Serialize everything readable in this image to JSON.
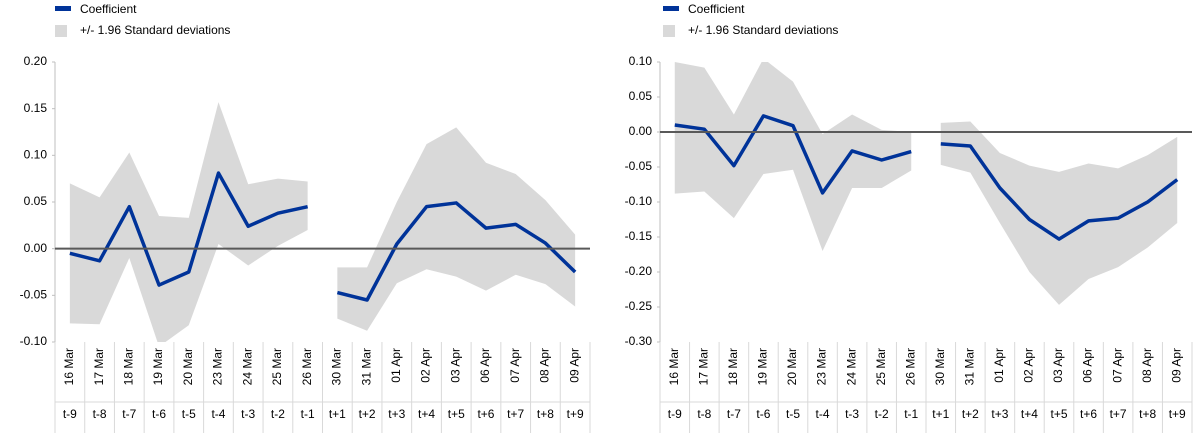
{
  "chart_data": [
    {
      "type": "line_band",
      "categories": [
        "16 Mar",
        "17 Mar",
        "18 Mar",
        "19 Mar",
        "20 Mar",
        "23 Mar",
        "24 Mar",
        "25 Mar",
        "26 Mar",
        "30 Mar",
        "31 Mar",
        "01 Apr",
        "02 Apr",
        "03 Apr",
        "06 Apr",
        "07 Apr",
        "08 Apr",
        "09 Apr"
      ],
      "periods": [
        "t-9",
        "t-8",
        "t-7",
        "t-6",
        "t-5",
        "t-4",
        "t-3",
        "t-2",
        "t-1",
        "t+1",
        "t+2",
        "t+3",
        "t+4",
        "t+5",
        "t+6",
        "t+7",
        "t+8",
        "t+9"
      ],
      "break_after_index": 8,
      "series": [
        {
          "name": "Coefficient",
          "color": "#003399",
          "values": [
            -0.005,
            -0.013,
            0.045,
            -0.039,
            -0.025,
            0.081,
            0.024,
            0.038,
            0.045,
            -0.047,
            -0.055,
            0.005,
            0.045,
            0.049,
            0.022,
            0.026,
            0.006,
            -0.025
          ]
        }
      ],
      "band": {
        "name": "+/- 1.96 Standard deviations",
        "color": "#d9d9d9",
        "upper": [
          0.07,
          0.055,
          0.103,
          0.035,
          0.033,
          0.157,
          0.069,
          0.075,
          0.072,
          -0.02,
          -0.02,
          0.05,
          0.112,
          0.13,
          0.092,
          0.08,
          0.052,
          0.015
        ],
        "lower": [
          -0.08,
          -0.081,
          -0.01,
          -0.105,
          -0.082,
          0.005,
          -0.018,
          0.003,
          0.02,
          -0.075,
          -0.088,
          -0.037,
          -0.022,
          -0.03,
          -0.045,
          -0.028,
          -0.038,
          -0.062
        ]
      },
      "ylim": [
        -0.1,
        0.2
      ],
      "yticks": [
        {
          "value": -0.1,
          "label": "-0.10"
        },
        -0.05,
        {
          "value": 0,
          "label": "0.00"
        },
        0.05,
        {
          "value": 0.1,
          "label": "0.10"
        },
        0.15,
        {
          "value": 0.2,
          "label": "0.20"
        }
      ]
    },
    {
      "type": "line_band",
      "categories": [
        "16 Mar",
        "17 Mar",
        "18 Mar",
        "19 Mar",
        "20 Mar",
        "23 Mar",
        "24 Mar",
        "25 Mar",
        "26 Mar",
        "30 Mar",
        "31 Mar",
        "01 Apr",
        "02 Apr",
        "03 Apr",
        "06 Apr",
        "07 Apr",
        "08 Apr",
        "09 Apr"
      ],
      "periods": [
        "t-9",
        "t-8",
        "t-7",
        "t-6",
        "t-5",
        "t-4",
        "t-3",
        "t-2",
        "t-1",
        "t+1",
        "t+2",
        "t+3",
        "t+4",
        "t+5",
        "t+6",
        "t+7",
        "t+8",
        "t+9"
      ],
      "break_after_index": 8,
      "series": [
        {
          "name": "Coefficient",
          "color": "#003399",
          "values": [
            0.01,
            0.004,
            -0.048,
            0.023,
            0.009,
            -0.087,
            -0.027,
            -0.04,
            -0.028,
            -0.017,
            -0.02,
            -0.08,
            -0.125,
            -0.153,
            -0.127,
            -0.123,
            -0.1,
            -0.068
          ]
        }
      ],
      "band": {
        "name": "+/- 1.96 Standard deviations",
        "color": "#d9d9d9",
        "upper": [
          0.1,
          0.092,
          0.025,
          0.105,
          0.072,
          -0.003,
          0.025,
          0.003,
          0,
          0.013,
          0.015,
          -0.03,
          -0.048,
          -0.057,
          -0.045,
          -0.052,
          -0.033,
          -0.007
        ],
        "lower": [
          -0.088,
          -0.085,
          -0.123,
          -0.06,
          -0.054,
          -0.17,
          -0.08,
          -0.08,
          -0.055,
          -0.047,
          -0.058,
          -0.13,
          -0.2,
          -0.247,
          -0.21,
          -0.193,
          -0.165,
          -0.13
        ]
      },
      "ylim": [
        -0.3,
        0.1
      ],
      "yticks": [
        {
          "value": -0.3,
          "label": "-0.30"
        },
        -0.25,
        {
          "value": -0.2,
          "label": "-0.20"
        },
        -0.15,
        {
          "value": -0.1,
          "label": "-0.10"
        },
        -0.05,
        {
          "value": 0,
          "label": "0.00"
        },
        0.05,
        {
          "value": 0.1,
          "label": "0.10"
        }
      ]
    }
  ]
}
